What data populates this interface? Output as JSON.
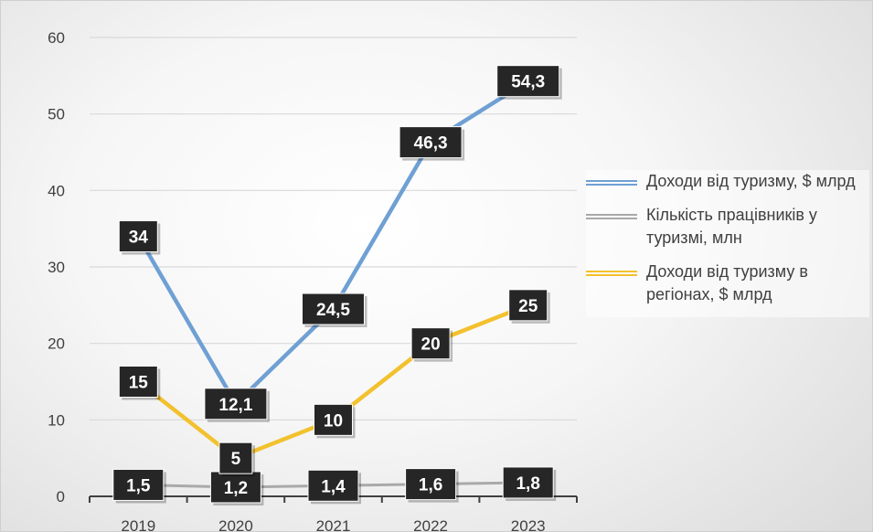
{
  "chart_data": {
    "type": "line",
    "categories": [
      "2019",
      "2020",
      "2021",
      "2022",
      "2023"
    ],
    "ylim": [
      0,
      60
    ],
    "yticks": [
      0,
      10,
      20,
      30,
      40,
      50,
      60
    ],
    "grid": true,
    "legend_position": "right",
    "series": [
      {
        "name": "Доходи від туризму, $ млрд",
        "color": "#6fa0d4",
        "values": [
          34,
          12.1,
          24.5,
          46.3,
          54.3
        ],
        "labels": [
          "34",
          "12,1",
          "24,5",
          "46,3",
          "54,3"
        ]
      },
      {
        "name": "Кількість працівників у туризмі, млн",
        "color": "#a9a9a9",
        "values": [
          1.5,
          1.2,
          1.4,
          1.6,
          1.8
        ],
        "labels": [
          "1,5",
          "1,2",
          "1,4",
          "1,6",
          "1,8"
        ]
      },
      {
        "name": "Доходи від туризму в регіонах, $ млрд",
        "color": "#f2c12e",
        "values": [
          15,
          5,
          10,
          20,
          25
        ],
        "labels": [
          "15",
          "5",
          "10",
          "20",
          "25"
        ]
      }
    ]
  }
}
